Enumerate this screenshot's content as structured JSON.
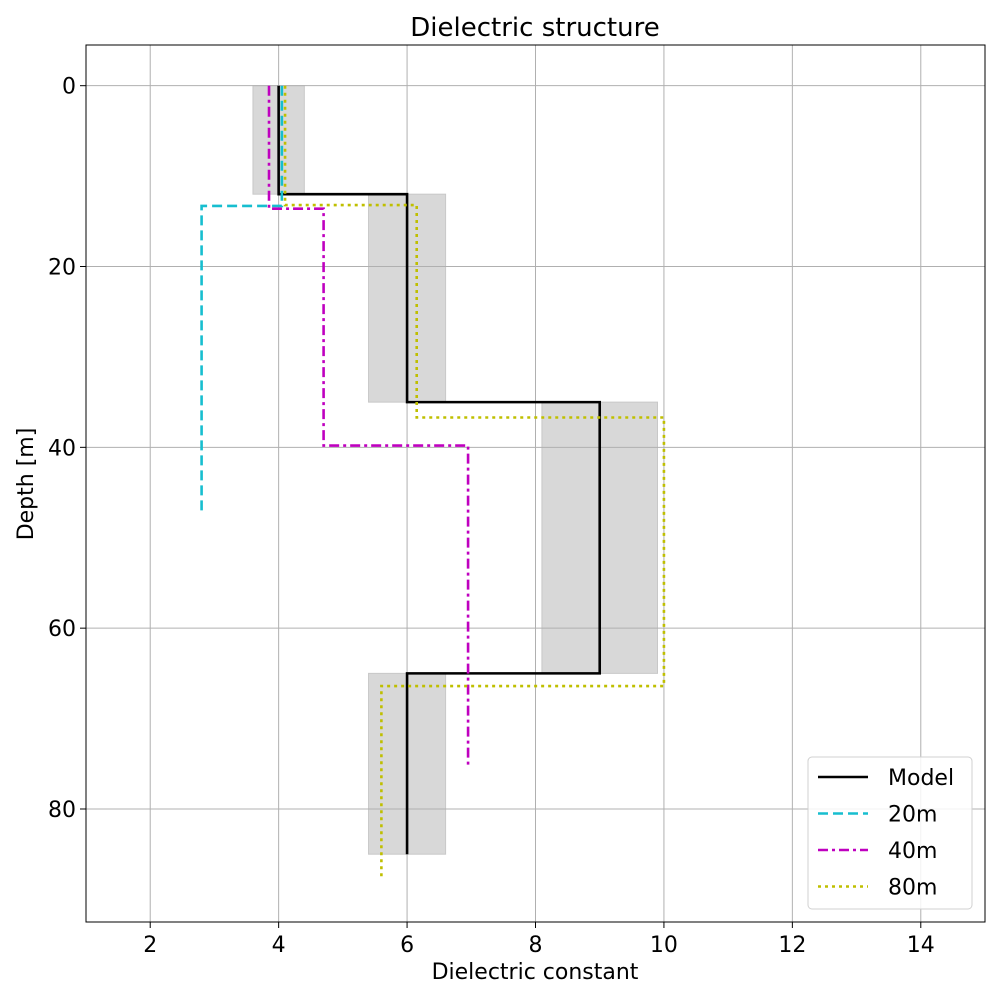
{
  "chart_data": {
    "type": "line",
    "title": "Dielectric structure",
    "xlabel": "Dielectric constant",
    "ylabel": "Depth [m]",
    "xlim": [
      1,
      15
    ],
    "ylim": [
      92.5,
      -4.5
    ],
    "y_inverted": true,
    "xticks": [
      2,
      4,
      6,
      8,
      10,
      12,
      14
    ],
    "yticks": [
      0,
      20,
      40,
      60,
      80
    ],
    "grid": true,
    "legend_position": "lower-right",
    "uncertainty_bands": [
      {
        "x_range": [
          3.6,
          4.4
        ],
        "y_range": [
          0,
          12
        ]
      },
      {
        "x_range": [
          5.4,
          6.6
        ],
        "y_range": [
          12,
          35
        ]
      },
      {
        "x_range": [
          8.1,
          9.9
        ],
        "y_range": [
          35,
          65
        ]
      },
      {
        "x_range": [
          5.4,
          6.6
        ],
        "y_range": [
          65,
          85
        ]
      }
    ],
    "series": [
      {
        "name": "Model",
        "color": "#000000",
        "style": "solid",
        "points": [
          [
            4.0,
            0
          ],
          [
            4.0,
            12
          ],
          [
            6.0,
            12
          ],
          [
            6.0,
            35
          ],
          [
            9.0,
            35
          ],
          [
            9.0,
            65
          ],
          [
            6.0,
            65
          ],
          [
            6.0,
            85
          ]
        ]
      },
      {
        "name": "20m",
        "color": "#17becf",
        "style": "dashed",
        "points": [
          [
            4.05,
            0
          ],
          [
            4.05,
            13.3
          ],
          [
            2.8,
            13.3
          ],
          [
            2.8,
            47.2
          ]
        ]
      },
      {
        "name": "40m",
        "color": "#bf00bf",
        "style": "dashdot",
        "points": [
          [
            3.85,
            0
          ],
          [
            3.85,
            13.6
          ],
          [
            4.7,
            13.6
          ],
          [
            4.7,
            39.8
          ],
          [
            6.95,
            39.8
          ],
          [
            6.95,
            75.2
          ]
        ]
      },
      {
        "name": "80m",
        "color": "#bfbf00",
        "style": "dotted",
        "points": [
          [
            4.1,
            0
          ],
          [
            4.1,
            13.2
          ],
          [
            6.15,
            13.2
          ],
          [
            6.15,
            36.7
          ],
          [
            10.0,
            36.7
          ],
          [
            10.0,
            66.4
          ],
          [
            5.6,
            66.4
          ],
          [
            5.6,
            87.5
          ]
        ]
      }
    ]
  }
}
